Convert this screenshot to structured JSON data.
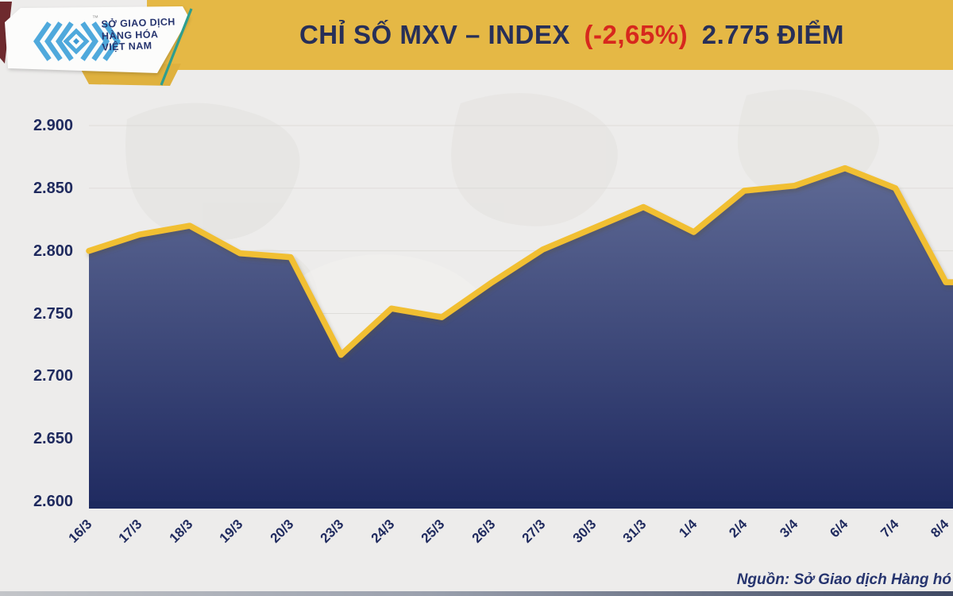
{
  "header": {
    "logo": {
      "line1": "SỞ GIAO DỊCH",
      "line2": "HÀNG HÓA",
      "line3": "VIỆT NAM",
      "trademark": "™"
    },
    "title": {
      "part1": "CHỈ SỐ MXV – INDEX",
      "change": "(-2,65%)",
      "part2": "2.775 ĐIỂM"
    }
  },
  "colors": {
    "banner_gold": "#E5B845",
    "title_navy": "#272F58",
    "change_red": "#D7281D",
    "axis_navy": "#1F2A5E",
    "line_gold": "#F1BF31",
    "fill_top": "#66719B",
    "fill_bottom": "#1F2A60",
    "baseline_navy": "#1D2A5E"
  },
  "chart_data": {
    "type": "area",
    "title": "CHỈ SỐ MXV – INDEX (-2,65%) 2.775 ĐIỂM",
    "xlabel": "",
    "ylabel": "",
    "categories": [
      "16/3",
      "17/3",
      "18/3",
      "19/3",
      "20/3",
      "23/3",
      "24/3",
      "25/3",
      "26/3",
      "27/3",
      "30/3",
      "31/3",
      "1/4",
      "2/4",
      "3/4",
      "6/4",
      "7/4",
      "8/4"
    ],
    "values": [
      2800,
      2813,
      2820,
      2798,
      2795,
      2717,
      2754,
      2747,
      2775,
      2801,
      2818,
      2835,
      2815,
      2848,
      2852,
      2866,
      2850,
      2775
    ],
    "ylim": [
      2600,
      2900
    ],
    "y_tick_values": [
      2900,
      2850,
      2800,
      2750,
      2700,
      2650,
      2600
    ],
    "y_tick_labels": [
      "2.900",
      "2.850",
      "2.800",
      "2.750",
      "2.700",
      "2.650",
      "2.600"
    ],
    "grid": true,
    "legend": false
  },
  "footer": {
    "source": "Nguồn: Sở Giao dịch Hàng hó"
  }
}
